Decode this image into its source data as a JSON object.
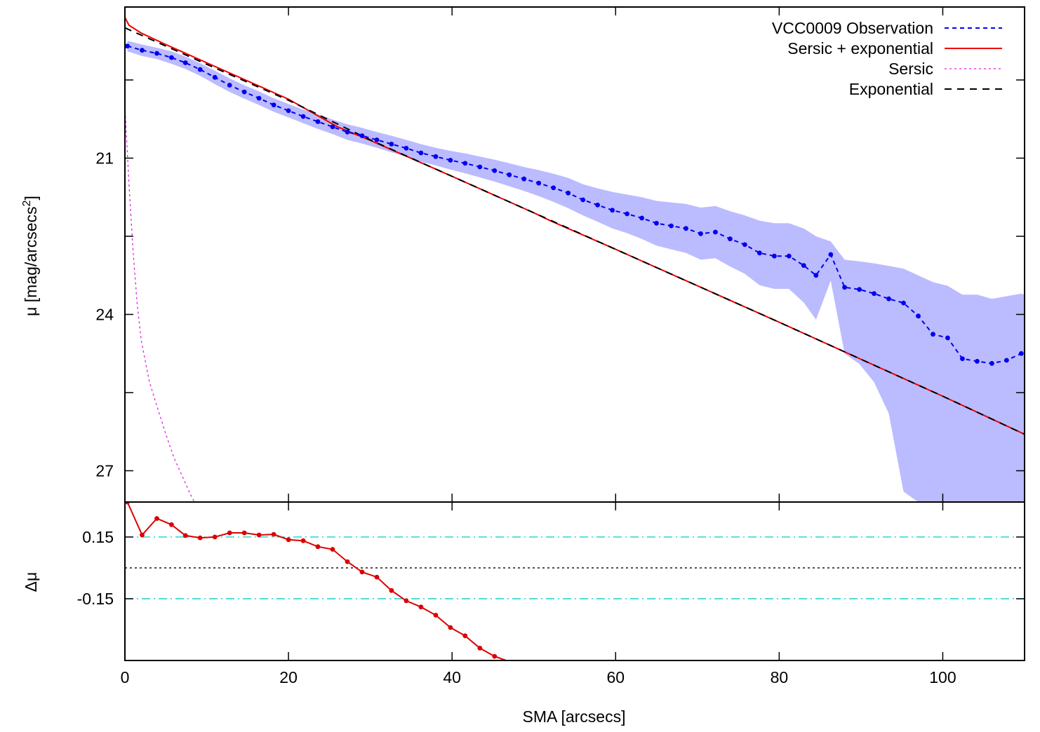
{
  "chart_data": [
    {
      "type": "line",
      "panel": "surface brightness profile",
      "title": "",
      "xlabel": "",
      "ylabel": "μ [mag/arcsecs²]",
      "ylabel_parts": {
        "main": "μ [mag/arcsecs",
        "sup": "2",
        "close": "]"
      },
      "xlim": [
        0,
        110
      ],
      "ylim": [
        27.6,
        18.1
      ],
      "y_inverted": true,
      "yticks": [
        21,
        24,
        27
      ],
      "ytick_labels": [
        "21",
        "24",
        "27"
      ],
      "yticks_minor": [
        19.5,
        22.5,
        25.5
      ],
      "xticks": [
        0,
        20,
        40,
        60,
        80,
        100
      ],
      "legend": "top-right",
      "grid": false,
      "series": [
        {
          "name": "VCC0009 Observation",
          "color": "#0000ee",
          "style": "dotted-with-points",
          "x": [
            0.3,
            2.1,
            3.9,
            5.7,
            7.4,
            9.2,
            11.0,
            12.8,
            14.6,
            16.4,
            18.2,
            20.0,
            21.8,
            23.6,
            25.4,
            27.2,
            29.0,
            30.8,
            32.6,
            34.4,
            36.2,
            38.0,
            39.8,
            41.6,
            43.4,
            45.2,
            47.0,
            48.8,
            50.6,
            52.4,
            54.2,
            56.0,
            57.8,
            59.6,
            61.4,
            63.2,
            65.0,
            66.8,
            68.6,
            70.4,
            72.2,
            74.0,
            75.8,
            77.6,
            79.4,
            81.2,
            83.0,
            84.5,
            86.3,
            88.0,
            89.8,
            91.6,
            93.4,
            95.2,
            97.0,
            98.8,
            100.6,
            102.4,
            104.2,
            106.0,
            107.8,
            109.6,
            110
          ],
          "y": [
            18.85,
            18.93,
            18.99,
            19.07,
            19.17,
            19.3,
            19.45,
            19.6,
            19.73,
            19.85,
            19.98,
            20.09,
            20.2,
            20.3,
            20.4,
            20.5,
            20.57,
            20.65,
            20.73,
            20.81,
            20.9,
            20.97,
            21.04,
            21.1,
            21.17,
            21.24,
            21.32,
            21.4,
            21.48,
            21.57,
            21.67,
            21.8,
            21.9,
            22.0,
            22.07,
            22.15,
            22.25,
            22.3,
            22.35,
            22.45,
            22.42,
            22.55,
            22.66,
            22.82,
            22.88,
            22.88,
            23.06,
            23.25,
            22.85,
            23.48,
            23.52,
            23.6,
            23.7,
            23.78,
            24.03,
            24.38,
            24.45,
            24.85,
            24.9,
            24.94,
            24.88,
            24.75,
            24.8
          ],
          "band_lower": [
            18.75,
            18.82,
            18.88,
            18.95,
            19.05,
            19.18,
            19.32,
            19.47,
            19.6,
            19.72,
            19.85,
            19.96,
            20.07,
            20.16,
            20.26,
            20.35,
            20.42,
            20.5,
            20.57,
            20.65,
            20.73,
            20.8,
            20.86,
            20.91,
            20.97,
            21.03,
            21.1,
            21.17,
            21.23,
            21.3,
            21.38,
            21.5,
            21.58,
            21.65,
            21.7,
            21.75,
            21.82,
            21.85,
            21.88,
            21.95,
            21.92,
            22.02,
            22.1,
            22.2,
            22.25,
            22.25,
            22.35,
            22.5,
            22.6,
            22.95,
            22.98,
            23.02,
            23.07,
            23.12,
            23.25,
            23.38,
            23.45,
            23.62,
            23.62,
            23.7,
            23.65,
            23.6,
            23.62
          ],
          "band_upper": [
            18.95,
            19.04,
            19.1,
            19.19,
            19.29,
            19.42,
            19.58,
            19.73,
            19.86,
            19.98,
            20.11,
            20.22,
            20.33,
            20.44,
            20.54,
            20.65,
            20.72,
            20.8,
            20.89,
            20.97,
            21.07,
            21.14,
            21.22,
            21.29,
            21.37,
            21.45,
            21.54,
            21.63,
            21.73,
            21.84,
            21.96,
            22.1,
            22.22,
            22.35,
            22.44,
            22.55,
            22.68,
            22.75,
            22.82,
            22.95,
            22.92,
            23.08,
            23.22,
            23.44,
            23.51,
            23.51,
            23.77,
            24.1,
            23.35,
            24.75,
            24.95,
            25.3,
            25.9,
            27.4,
            27.6,
            27.6,
            27.6,
            27.6,
            27.6,
            27.6,
            27.6,
            27.6,
            27.6
          ]
        },
        {
          "name": "Sersic + exponential",
          "color": "#ee0000",
          "style": "solid",
          "x": [
            0,
            0.5,
            2,
            5,
            10,
            20,
            26,
            30,
            40,
            50,
            52,
            60,
            70,
            80,
            90,
            100,
            110
          ],
          "y": [
            18.3,
            18.45,
            18.6,
            18.82,
            19.17,
            19.87,
            20.4,
            20.66,
            21.35,
            22.05,
            22.2,
            22.75,
            23.45,
            24.15,
            24.86,
            25.57,
            26.3
          ]
        },
        {
          "name": "Sersic",
          "color": "#dd22dd",
          "style": "dotted",
          "x": [
            0,
            0.5,
            1,
            1.5,
            2,
            3,
            4,
            5,
            6,
            7,
            8,
            8.5
          ],
          "y": [
            20.0,
            21.5,
            22.8,
            23.8,
            24.5,
            25.3,
            25.8,
            26.3,
            26.75,
            27.1,
            27.45,
            27.6
          ]
        },
        {
          "name": "Exponential",
          "color": "#000000",
          "style": "dashed",
          "x": [
            0,
            10,
            20,
            30,
            40,
            50,
            60,
            70,
            80,
            90,
            100,
            110
          ],
          "y": [
            18.5,
            19.2,
            19.89,
            20.65,
            21.35,
            22.05,
            22.75,
            23.45,
            24.15,
            24.86,
            25.57,
            26.3
          ]
        }
      ]
    },
    {
      "type": "line",
      "panel": "residuals",
      "xlabel": "SMA [arcsecs]",
      "ylabel": "Δμ",
      "xlim": [
        0,
        110
      ],
      "ylim": [
        -0.45,
        0.32
      ],
      "xticks": [
        0,
        20,
        40,
        60,
        80,
        100
      ],
      "xtick_labels": [
        "0",
        "20",
        "40",
        "60",
        "80",
        "100"
      ],
      "yticks": [
        0.15,
        -0.15
      ],
      "ytick_labels": [
        "0.15",
        "-0.15"
      ],
      "reference_lines": [
        {
          "y": 0.15,
          "color": "#00cccc",
          "style": "dash-dot"
        },
        {
          "y": 0.0,
          "color": "#000000",
          "style": "dotted"
        },
        {
          "y": -0.15,
          "color": "#00cccc",
          "style": "dash-dot"
        }
      ],
      "series": [
        {
          "name": "",
          "color": "#dd0000",
          "style": "solid-with-points",
          "x": [
            0.3,
            2.1,
            3.9,
            5.7,
            7.4,
            9.2,
            11.0,
            12.8,
            14.6,
            16.4,
            18.2,
            20.0,
            21.8,
            23.6,
            25.4,
            27.2,
            29.0,
            30.8,
            32.6,
            34.4,
            36.2,
            38.0,
            39.8,
            41.6,
            43.4,
            45.2,
            46.6
          ],
          "y": [
            0.32,
            0.16,
            0.24,
            0.21,
            0.157,
            0.146,
            0.15,
            0.17,
            0.17,
            0.16,
            0.163,
            0.137,
            0.132,
            0.103,
            0.09,
            0.03,
            -0.02,
            -0.045,
            -0.11,
            -0.16,
            -0.19,
            -0.23,
            -0.29,
            -0.33,
            -0.39,
            -0.43,
            -0.45
          ]
        }
      ]
    }
  ]
}
